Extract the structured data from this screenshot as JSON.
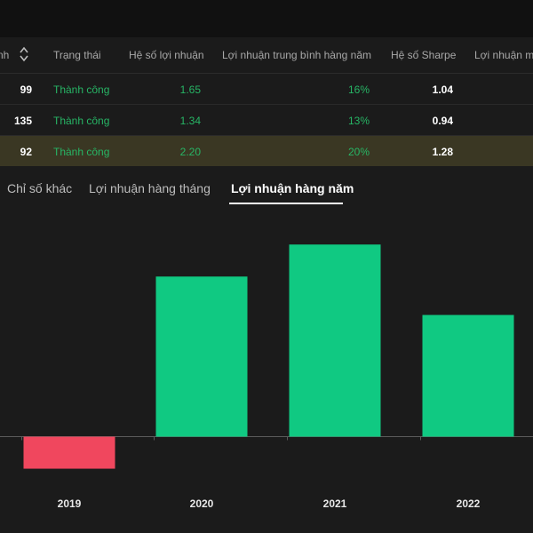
{
  "table": {
    "columns": [
      "nh",
      "Trạng thái",
      "Hệ số lợi nhuận",
      "Lợi nhuận trung bình hàng năm",
      "Hệ số Sharpe",
      "Lợi nhuận m"
    ],
    "rows": [
      {
        "count": "99",
        "status": "Thành công",
        "profit_factor": "1.65",
        "avg_annual": "16%",
        "sharpe": "1.04",
        "selected": false
      },
      {
        "count": "135",
        "status": "Thành công",
        "profit_factor": "1.34",
        "avg_annual": "13%",
        "sharpe": "0.94",
        "selected": false
      },
      {
        "count": "92",
        "status": "Thành công",
        "profit_factor": "2.20",
        "avg_annual": "20%",
        "sharpe": "1.28",
        "selected": true
      }
    ]
  },
  "tabs": [
    {
      "label": "Chỉ số khác",
      "active": false
    },
    {
      "label": "Lợi nhuận hàng tháng",
      "active": false
    },
    {
      "label": "Lợi nhuận hàng năm",
      "active": true
    }
  ],
  "colors": {
    "positive": "#10c982",
    "negative": "#f0475e",
    "accent_text": "#27b565"
  },
  "chart_data": {
    "type": "bar",
    "categories": [
      "2019",
      "2020",
      "2021",
      "2022"
    ],
    "values": [
      -5,
      25,
      30,
      19
    ],
    "ylim": [
      -7,
      36
    ],
    "grid": false,
    "title": "",
    "xlabel": "",
    "ylabel": ""
  }
}
